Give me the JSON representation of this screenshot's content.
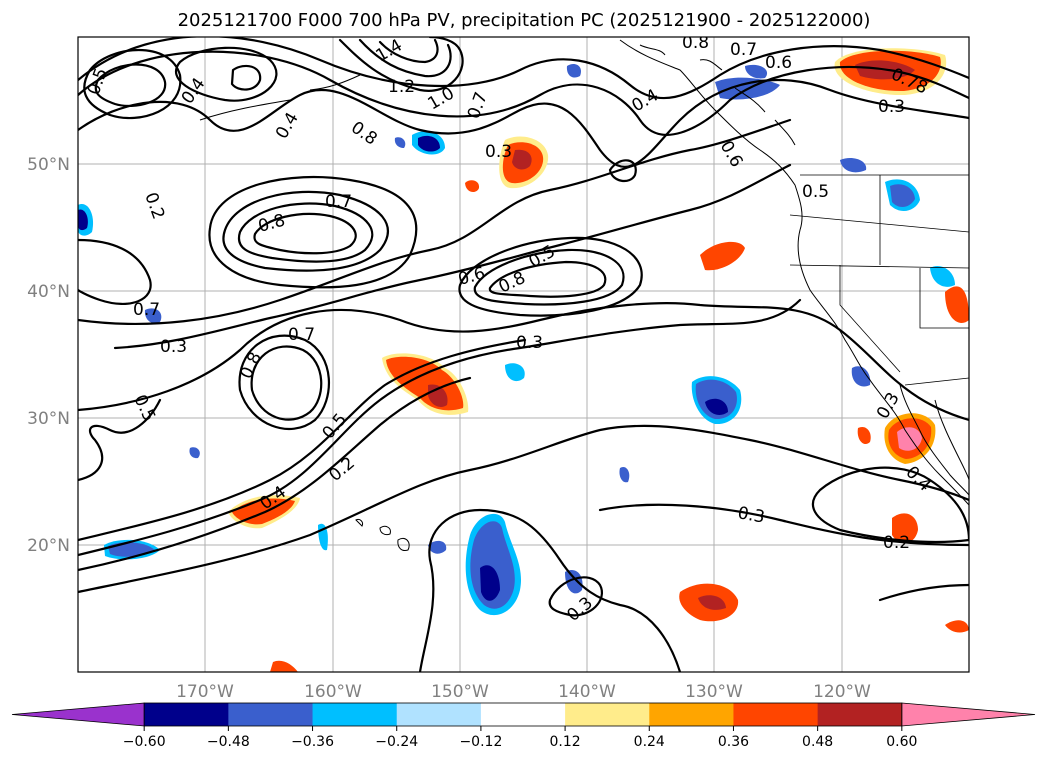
{
  "title": "2025121700 F000 700 hPa PV, precipitation PC (2025121900 - 2025122000)",
  "x_ticks": [
    "170°W",
    "160°W",
    "150°W",
    "140°W",
    "130°W",
    "120°W"
  ],
  "y_ticks": [
    "50°N",
    "40°N",
    "30°N",
    "20°N"
  ],
  "contour_labels": [
    "0.5",
    "0.4",
    "0.4",
    "1.4",
    "1.2",
    "1.0",
    "0.8",
    "0.7",
    "0.8",
    "0.7",
    "0.6",
    "0.78",
    "0.3",
    "0.4",
    "0.6",
    "0.3",
    "0.5",
    "0.2",
    "0.8",
    "0.7",
    "0.7",
    "0.6",
    "0.8",
    "0.3",
    "0.5",
    "0.7",
    "0.8",
    "0.3",
    "0.5",
    "0.5",
    "0.2",
    "0.4",
    "0.3",
    "0.4",
    "0.3",
    "0.3",
    "0.2"
  ],
  "colorbar": {
    "tick_labels": [
      "−0.60",
      "−0.48",
      "−0.36",
      "−0.24",
      "−0.12",
      "0.12",
      "0.24",
      "0.36",
      "0.48",
      "0.60"
    ],
    "colors": [
      "#9a32cd",
      "#00008b",
      "#3a5fcd",
      "#00bfff",
      "#b0e2ff",
      "#ffffff",
      "#ffec8b",
      "#ffa500",
      "#ff4500",
      "#b22222",
      "#ff82ab"
    ]
  },
  "chart_data": {
    "type": "map",
    "title": "2025121700 F000 700 hPa PV, precipitation PC (2025121900 - 2025122000)",
    "longitude_range": [
      -180,
      -110
    ],
    "latitude_range": [
      10,
      60
    ],
    "contour_field": "700 hPa PV",
    "shaded_field": "precipitation PC",
    "color_levels": [
      -0.6,
      -0.48,
      -0.36,
      -0.24,
      -0.12,
      0.12,
      0.24,
      0.36,
      0.48,
      0.6
    ],
    "colorbar_extend": "both"
  }
}
